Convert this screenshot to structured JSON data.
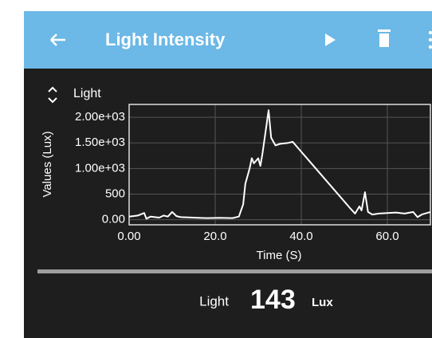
{
  "app_bar": {
    "title": "Light Intensity"
  },
  "chart_data": {
    "type": "line",
    "xlabel": "Time (S)",
    "ylabel": "Values (Lux)",
    "x": [
      0,
      2,
      3.5,
      4,
      5,
      7,
      8,
      9,
      10,
      11,
      12,
      15,
      18,
      21,
      24,
      25.5,
      26.5,
      27,
      28,
      28.5,
      29,
      30,
      30.5,
      31,
      32.4,
      33,
      34,
      35,
      37,
      38,
      51.5,
      52.5,
      53.5,
      54,
      54.8,
      55.5,
      56.5,
      58,
      60,
      62,
      64,
      66,
      67,
      68,
      70
    ],
    "series": [
      {
        "name": "Light",
        "color": "#ffffff",
        "values": [
          60,
          80,
          130,
          20,
          60,
          40,
          80,
          60,
          150,
          70,
          50,
          40,
          30,
          35,
          30,
          60,
          300,
          700,
          1000,
          1200,
          1100,
          1200,
          1050,
          1300,
          2136,
          1600,
          1450,
          1480,
          1500,
          1520,
          210,
          120,
          260,
          180,
          537,
          150,
          100,
          120,
          130,
          140,
          120,
          150,
          50,
          100,
          150
        ]
      }
    ],
    "xlim": [
      0,
      70
    ],
    "ylim": [
      -100,
      2250
    ],
    "xticks": [
      {
        "value": 0,
        "label": "0.00"
      },
      {
        "value": 20,
        "label": "20.0"
      },
      {
        "value": 40,
        "label": "40.0"
      },
      {
        "value": 60,
        "label": "60.0"
      }
    ],
    "yticks": [
      {
        "value": 0,
        "label": "0.00"
      },
      500,
      {
        "value": 1000,
        "label": "1.00e+03"
      },
      {
        "value": 1500,
        "label": "1.50e+03"
      },
      {
        "value": 2000,
        "label": "2.00e+03"
      }
    ],
    "grid": true
  },
  "reading": {
    "name": "Light",
    "value": "143",
    "unit": "Lux"
  }
}
